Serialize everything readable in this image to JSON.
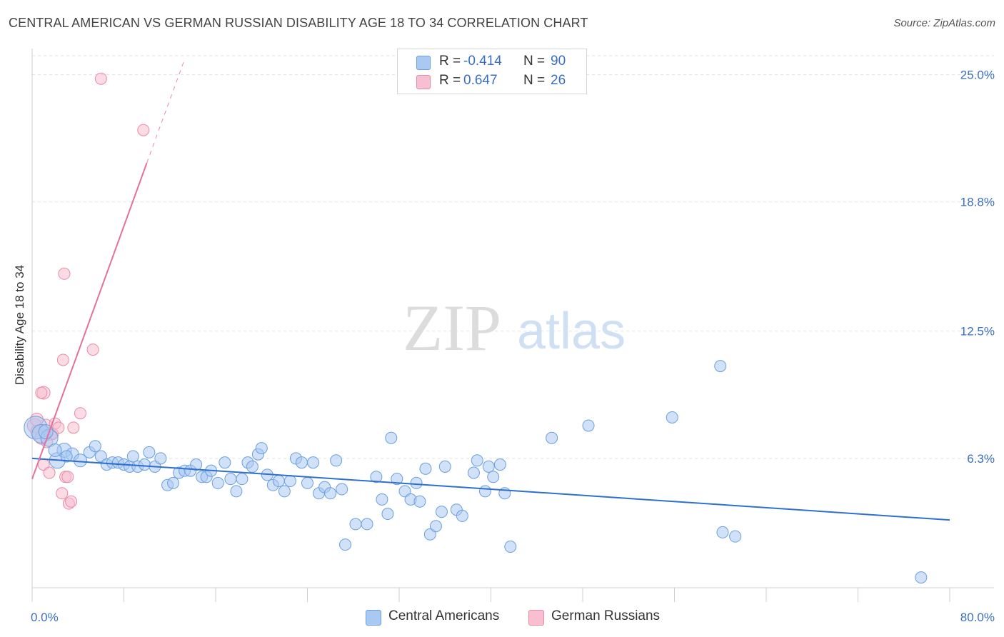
{
  "header": {
    "title": "CENTRAL AMERICAN VS GERMAN RUSSIAN DISABILITY AGE 18 TO 34 CORRELATION CHART",
    "source": "Source: ZipAtlas.com"
  },
  "watermark": {
    "zip": "ZIP",
    "atlas": "atlas"
  },
  "legend": {
    "rows": [
      {
        "label": "R =",
        "r": "-0.414",
        "n_label": "N =",
        "n": "90",
        "color": "#a9c8f2",
        "border": "#6a9fe0"
      },
      {
        "label": "R =",
        "r": "0.647",
        "n_label": "N =",
        "n": "26",
        "color": "#f7bfd0",
        "border": "#e98aa8"
      }
    ]
  },
  "bottom_legend": {
    "items": [
      {
        "label": "Central Americans",
        "color": "#a9c8f2",
        "border": "#6a9fe0"
      },
      {
        "label": "German Russians",
        "color": "#f7bfd0",
        "border": "#e98aa8"
      }
    ]
  },
  "chart_data": {
    "type": "scatter",
    "title": "CENTRAL AMERICAN VS GERMAN RUSSIAN DISABILITY AGE 18 TO 34 CORRELATION CHART",
    "xlabel": "",
    "ylabel": "Disability Age 18 to 34",
    "xlim": [
      0,
      80
    ],
    "ylim": [
      0,
      26.2
    ],
    "x_tick_labels": [
      "0.0%",
      "80.0%"
    ],
    "y_ticks": [
      6.3,
      12.5,
      18.8,
      25.0
    ],
    "y_tick_labels": [
      "6.3%",
      "12.5%",
      "18.8%",
      "25.0%"
    ],
    "grid": true,
    "legend_position": "top-center",
    "series": [
      {
        "name": "Central Americans",
        "color": "#a9c8f2",
        "stroke": "#6a9fe0",
        "trend": {
          "x": [
            0,
            80
          ],
          "y": [
            6.3,
            3.3
          ]
        },
        "points": [
          [
            0.3,
            7.8,
            16
          ],
          [
            0.8,
            7.5,
            13
          ],
          [
            1.5,
            7.3,
            12
          ],
          [
            2.2,
            6.2,
            11
          ],
          [
            2.8,
            6.7,
            10
          ],
          [
            3.5,
            6.5,
            9
          ],
          [
            4.2,
            6.2,
            9
          ],
          [
            5.0,
            6.6,
            8
          ],
          [
            5.5,
            6.9,
            8
          ],
          [
            6.0,
            6.4,
            8
          ],
          [
            6.5,
            6.0,
            8
          ],
          [
            7.0,
            6.1,
            8
          ],
          [
            7.5,
            6.1,
            8
          ],
          [
            8.0,
            6.0,
            8
          ],
          [
            8.5,
            5.9,
            8
          ],
          [
            8.8,
            6.4,
            8
          ],
          [
            9.2,
            5.9,
            8
          ],
          [
            9.8,
            6.0,
            8
          ],
          [
            10.2,
            6.6,
            8
          ],
          [
            10.7,
            5.9,
            8
          ],
          [
            11.2,
            6.3,
            8
          ],
          [
            11.8,
            5.0,
            8
          ],
          [
            12.3,
            5.1,
            8
          ],
          [
            12.8,
            5.6,
            8
          ],
          [
            13.3,
            5.7,
            8
          ],
          [
            13.8,
            5.7,
            8
          ],
          [
            14.3,
            6.0,
            8
          ],
          [
            14.8,
            5.4,
            8
          ],
          [
            15.2,
            5.4,
            8
          ],
          [
            15.6,
            5.7,
            8
          ],
          [
            16.2,
            5.1,
            8
          ],
          [
            16.8,
            6.1,
            8
          ],
          [
            17.3,
            5.3,
            8
          ],
          [
            17.8,
            4.7,
            8
          ],
          [
            18.3,
            5.3,
            8
          ],
          [
            18.8,
            6.1,
            8
          ],
          [
            19.2,
            5.9,
            8
          ],
          [
            19.7,
            6.5,
            8
          ],
          [
            20.0,
            6.8,
            8
          ],
          [
            20.5,
            5.5,
            8
          ],
          [
            21.0,
            5.0,
            8
          ],
          [
            21.5,
            5.2,
            8
          ],
          [
            22.0,
            4.7,
            8
          ],
          [
            22.5,
            5.2,
            8
          ],
          [
            23.0,
            6.3,
            8
          ],
          [
            23.5,
            6.1,
            8
          ],
          [
            24.0,
            5.1,
            8
          ],
          [
            24.5,
            6.1,
            8
          ],
          [
            25.0,
            4.6,
            8
          ],
          [
            25.5,
            4.9,
            8
          ],
          [
            26.0,
            4.6,
            8
          ],
          [
            26.5,
            6.2,
            8
          ],
          [
            27.0,
            4.8,
            8
          ],
          [
            27.3,
            2.1,
            8
          ],
          [
            28.2,
            3.1,
            8
          ],
          [
            29.2,
            3.1,
            8
          ],
          [
            30.0,
            5.4,
            8
          ],
          [
            30.5,
            4.3,
            8
          ],
          [
            31.0,
            3.6,
            8
          ],
          [
            31.3,
            7.3,
            8
          ],
          [
            31.8,
            5.3,
            8
          ],
          [
            32.5,
            4.7,
            8
          ],
          [
            33.0,
            4.3,
            8
          ],
          [
            33.5,
            5.1,
            8
          ],
          [
            33.8,
            4.2,
            8
          ],
          [
            34.3,
            5.8,
            8
          ],
          [
            34.7,
            2.6,
            8
          ],
          [
            35.2,
            3.0,
            8
          ],
          [
            35.7,
            3.7,
            8
          ],
          [
            36.0,
            5.9,
            8
          ],
          [
            37.0,
            3.8,
            8
          ],
          [
            37.5,
            3.5,
            8
          ],
          [
            38.5,
            5.6,
            8
          ],
          [
            38.8,
            6.2,
            8
          ],
          [
            39.5,
            4.7,
            8
          ],
          [
            39.8,
            5.9,
            8
          ],
          [
            40.2,
            5.4,
            8
          ],
          [
            40.8,
            6.0,
            8
          ],
          [
            41.2,
            4.6,
            8
          ],
          [
            41.7,
            2.0,
            8
          ],
          [
            45.3,
            7.3,
            8
          ],
          [
            48.5,
            7.9,
            8
          ],
          [
            55.8,
            8.3,
            8
          ],
          [
            60.0,
            10.8,
            8
          ],
          [
            60.2,
            2.7,
            8
          ],
          [
            61.3,
            2.5,
            8
          ],
          [
            77.5,
            0.5,
            8
          ],
          [
            3.0,
            6.4,
            8
          ],
          [
            1.2,
            7.6,
            10
          ],
          [
            2.0,
            6.7,
            9
          ]
        ]
      },
      {
        "name": "German Russians",
        "color": "#f7bfd0",
        "stroke": "#e98aa8",
        "trend": {
          "x": [
            0,
            10.0
          ],
          "y": [
            5.3,
            20.7
          ]
        },
        "trend_dashed": {
          "x": [
            10.0,
            13.2
          ],
          "y": [
            20.7,
            25.6
          ]
        },
        "points": [
          [
            0.2,
            7.9,
            10
          ],
          [
            0.5,
            7.6,
            10
          ],
          [
            0.8,
            7.3,
            9
          ],
          [
            1.2,
            7.9,
            9
          ],
          [
            1.6,
            7.5,
            9
          ],
          [
            1.0,
            9.5,
            9
          ],
          [
            0.8,
            9.5,
            8
          ],
          [
            1.0,
            6.0,
            8
          ],
          [
            1.5,
            5.6,
            8
          ],
          [
            1.8,
            7.5,
            8
          ],
          [
            2.0,
            8.0,
            8
          ],
          [
            2.3,
            7.8,
            8
          ],
          [
            2.6,
            4.6,
            8
          ],
          [
            2.7,
            11.1,
            8
          ],
          [
            2.8,
            15.3,
            8
          ],
          [
            2.9,
            5.4,
            8
          ],
          [
            3.1,
            5.4,
            8
          ],
          [
            3.2,
            4.1,
            8
          ],
          [
            3.4,
            4.2,
            8
          ],
          [
            3.6,
            7.8,
            8
          ],
          [
            4.2,
            8.5,
            8
          ],
          [
            5.3,
            11.6,
            8
          ],
          [
            6.0,
            24.8,
            8
          ],
          [
            9.7,
            22.3,
            8
          ],
          [
            0.4,
            8.2,
            9
          ],
          [
            1.3,
            7.1,
            8
          ]
        ]
      }
    ]
  }
}
